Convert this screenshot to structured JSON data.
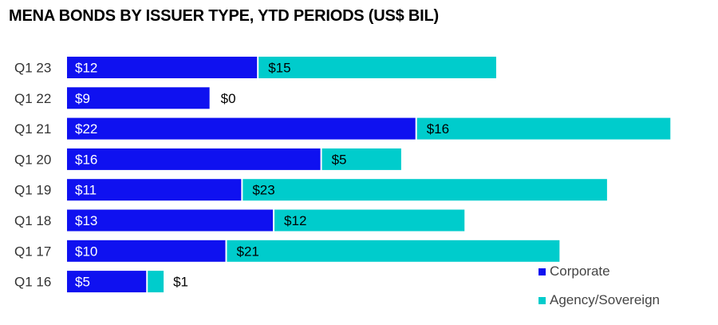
{
  "chart_data": {
    "type": "bar",
    "orientation": "horizontal",
    "stacked": true,
    "title": "MENA BONDS BY ISSUER TYPE, YTD PERIODS (US$ BIL)",
    "categories": [
      "Q1 23",
      "Q1 22",
      "Q1 21",
      "Q1 20",
      "Q1 19",
      "Q1 18",
      "Q1 17",
      "Q1 16"
    ],
    "series": [
      {
        "name": "Corporate",
        "color": "#0f11f0",
        "values": [
          12,
          9,
          22,
          16,
          11,
          13,
          10,
          5
        ],
        "labels": [
          "$12",
          "$9",
          "$22",
          "$16",
          "$11",
          "$13",
          "$10",
          "$5"
        ]
      },
      {
        "name": "Agency/Sovereign",
        "color": "#00cccc",
        "values": [
          15,
          0,
          16,
          5,
          23,
          12,
          21,
          1
        ],
        "labels": [
          "$15",
          "$0",
          "$16",
          "$5",
          "$23",
          "$12",
          "$21",
          "$1"
        ]
      }
    ],
    "xlim": [
      0,
      40
    ],
    "grid": false,
    "legend_position": "bottom-right"
  }
}
